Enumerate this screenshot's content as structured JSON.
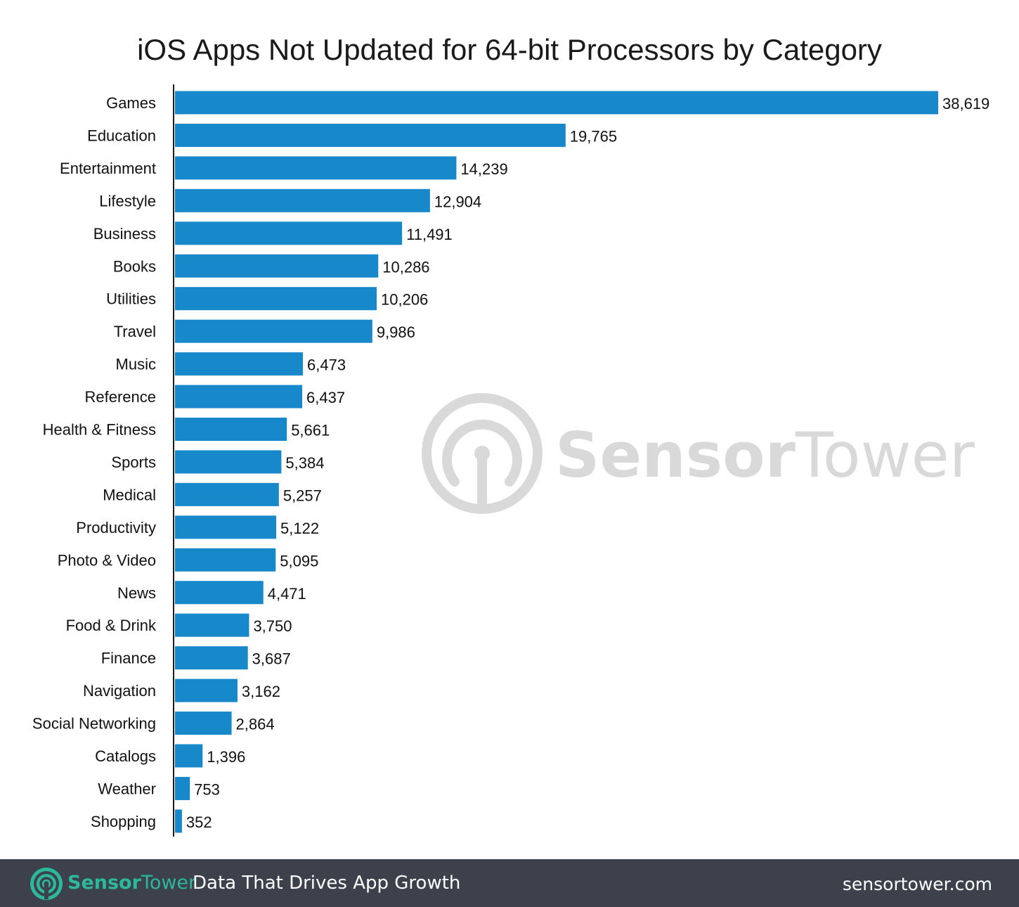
{
  "chart_data": {
    "type": "bar",
    "orientation": "horizontal",
    "title": "iOS Apps Not Updated for 64-bit Processors by Category",
    "categories": [
      "Games",
      "Education",
      "Entertainment",
      "Lifestyle",
      "Business",
      "Books",
      "Utilities",
      "Travel",
      "Music",
      "Reference",
      "Health & Fitness",
      "Sports",
      "Medical",
      "Productivity",
      "Photo & Video",
      "News",
      "Food & Drink",
      "Finance",
      "Navigation",
      "Social Networking",
      "Catalogs",
      "Weather",
      "Shopping"
    ],
    "values": [
      38619,
      19765,
      14239,
      12904,
      11491,
      10286,
      10206,
      9986,
      6473,
      6437,
      5661,
      5384,
      5257,
      5122,
      5095,
      4471,
      3750,
      3687,
      3162,
      2864,
      1396,
      753,
      352
    ],
    "value_labels": [
      "38,619",
      "19,765",
      "14,239",
      "12,904",
      "11,491",
      "10,286",
      "10,206",
      "9,986",
      "6,473",
      "6,437",
      "5,661",
      "5,384",
      "5,257",
      "5,122",
      "5,095",
      "4,471",
      "3,750",
      "3,687",
      "3,162",
      "2,864",
      "1,396",
      "753",
      "352"
    ],
    "xlim": [
      0,
      38619
    ],
    "xlabel": "",
    "ylabel": "",
    "grid": false,
    "legend": "none",
    "bar_color": "#1789cb",
    "axis_color": "#1a1a1a"
  },
  "watermark": {
    "brand_bold": "Sensor",
    "brand_light": "Tower",
    "color": "#d9d9d9",
    "icon": "sensor-tower-logo-icon"
  },
  "footer": {
    "brand_bold": "Sensor",
    "brand_light": "Tower",
    "tagline": "Data That Drives App Growth",
    "url": "sensortower.com",
    "background": "#3c414c",
    "brand_color": "#2cb89a",
    "icon": "sensor-tower-logo-icon"
  }
}
